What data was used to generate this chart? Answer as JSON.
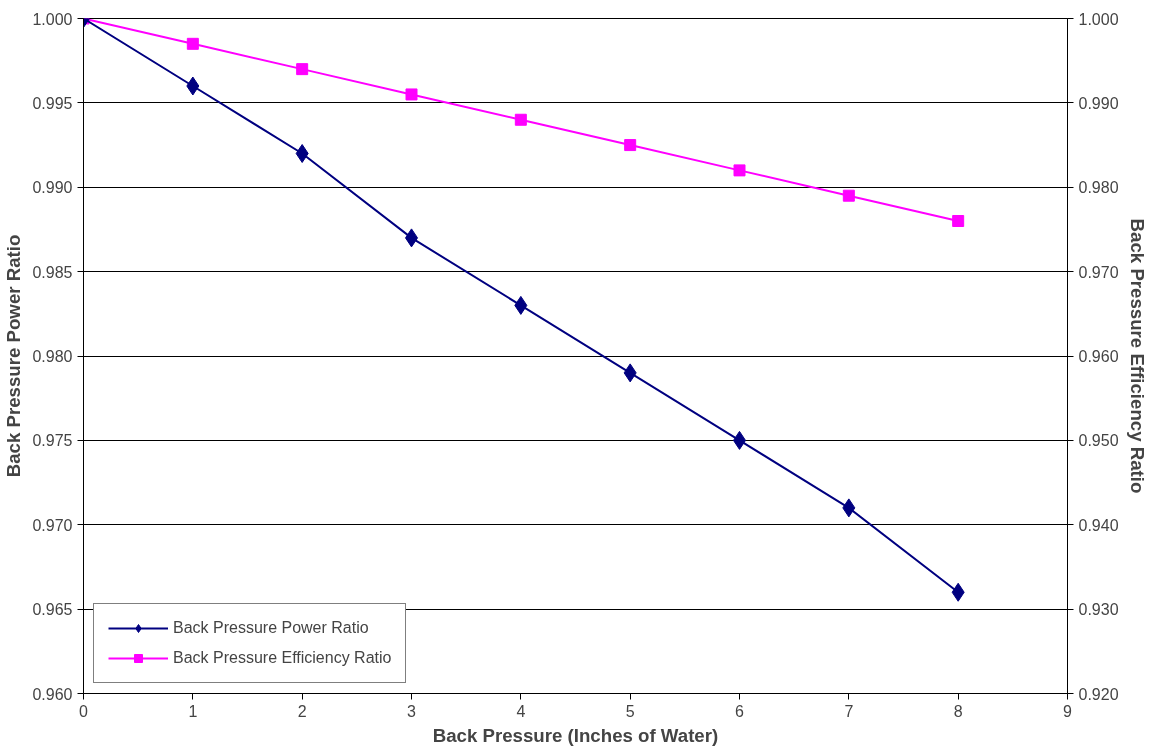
{
  "chart_data": {
    "type": "line",
    "xlabel": "Back Pressure (Inches of Water)",
    "ylabel": "Back Pressure Power Ratio",
    "y2label": "Back Pressure Efficiency Ratio",
    "x": [
      0,
      1,
      2,
      3,
      4,
      5,
      6,
      7,
      8
    ],
    "series": [
      {
        "name": "Back Pressure Power Ratio",
        "color": "#000080",
        "marker": "diamond",
        "values": [
          1.0,
          0.996,
          0.992,
          0.987,
          0.983,
          0.979,
          0.975,
          0.971,
          0.966
        ]
      },
      {
        "name": "Back Pressure Efficiency Ratio",
        "color": "#ff00ff",
        "marker": "square",
        "axis": "y2",
        "values": [
          1.0,
          0.997,
          0.994,
          0.991,
          0.988,
          0.985,
          0.982,
          0.979,
          0.976
        ]
      }
    ],
    "xlim": [
      0,
      9
    ],
    "xticks": [
      0,
      1,
      2,
      3,
      4,
      5,
      6,
      7,
      8,
      9
    ],
    "ylim": [
      0.96,
      1.0
    ],
    "yticks": [
      {
        "value": 0.96,
        "label": "0.960"
      },
      {
        "value": 0.965,
        "label": "0.965"
      },
      {
        "value": 0.97,
        "label": "0.970"
      },
      {
        "value": 0.975,
        "label": "0.975"
      },
      {
        "value": 0.98,
        "label": "0.980"
      },
      {
        "value": 0.985,
        "label": "0.985"
      },
      {
        "value": 0.99,
        "label": "0.990"
      },
      {
        "value": 0.995,
        "label": "0.995"
      },
      {
        "value": 1.0,
        "label": "1.000"
      }
    ],
    "y2lim": [
      0.92,
      1.0
    ],
    "y2ticks": [
      {
        "value": 0.92,
        "label": "0.920"
      },
      {
        "value": 0.93,
        "label": "0.930"
      },
      {
        "value": 0.94,
        "label": "0.940"
      },
      {
        "value": 0.95,
        "label": "0.950"
      },
      {
        "value": 0.96,
        "label": "0.960"
      },
      {
        "value": 0.97,
        "label": "0.970"
      },
      {
        "value": 0.98,
        "label": "0.980"
      },
      {
        "value": 0.99,
        "label": "0.990"
      },
      {
        "value": 1.0,
        "label": "1.000"
      }
    ],
    "grid": "y",
    "legend": "bottom left",
    "line_style": "solid"
  }
}
